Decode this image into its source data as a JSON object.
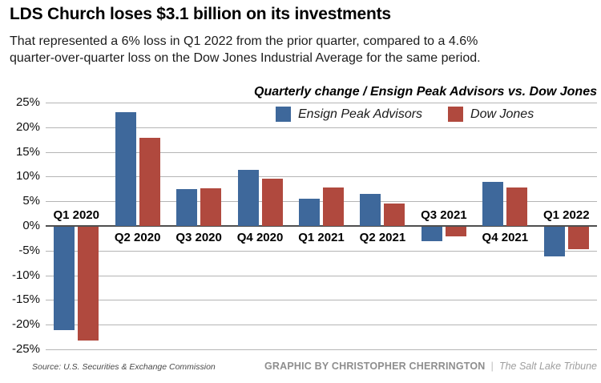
{
  "header": {
    "title": "LDS Church loses $3.1 billion on its investments",
    "subtitle_lines": [
      "That represented a 6% loss in Q1 2022 from the prior quarter, compared to a 4.6%",
      "quarter-over-quarter loss on the Dow Jones Industrial Average for the same period."
    ]
  },
  "chart_data": {
    "type": "bar",
    "title": "Quarterly change / Ensign Peak Advisors vs. Dow Jones",
    "categories": [
      "Q1 2020",
      "Q2 2020",
      "Q3 2020",
      "Q4 2020",
      "Q1 2021",
      "Q2 2021",
      "Q3 2021",
      "Q4 2021",
      "Q1 2022"
    ],
    "series": [
      {
        "name": "Ensign Peak Advisors",
        "color": "#3e689b",
        "values": [
          -21,
          23,
          7.5,
          11.3,
          5.5,
          6.5,
          -3,
          9,
          -6
        ]
      },
      {
        "name": "Dow Jones",
        "color": "#b0493e",
        "values": [
          -23,
          17.8,
          7.6,
          9.5,
          7.8,
          4.6,
          -1.9,
          7.8,
          -4.6
        ]
      }
    ],
    "ylabel": "",
    "xlabel": "",
    "ylim": [
      -25,
      25
    ],
    "ytick_step": 5,
    "ytick_labels": [
      "25%",
      "20%",
      "15%",
      "10%",
      "5%",
      "0%",
      "-5%",
      "-10%",
      "-15%",
      "-20%",
      "-25%"
    ],
    "grid": true,
    "legend_position": "inside-top-center",
    "colors": {
      "gridline": "#b5b5b5",
      "zero_line": "#4f4f4f"
    }
  },
  "footer": {
    "source": "Source: U.S. Securities & Exchange Commission",
    "credit": "GRAPHIC BY CHRISTOPHER CHERRINGTON",
    "separator": "|",
    "publication": "The Salt Lake Tribune"
  }
}
